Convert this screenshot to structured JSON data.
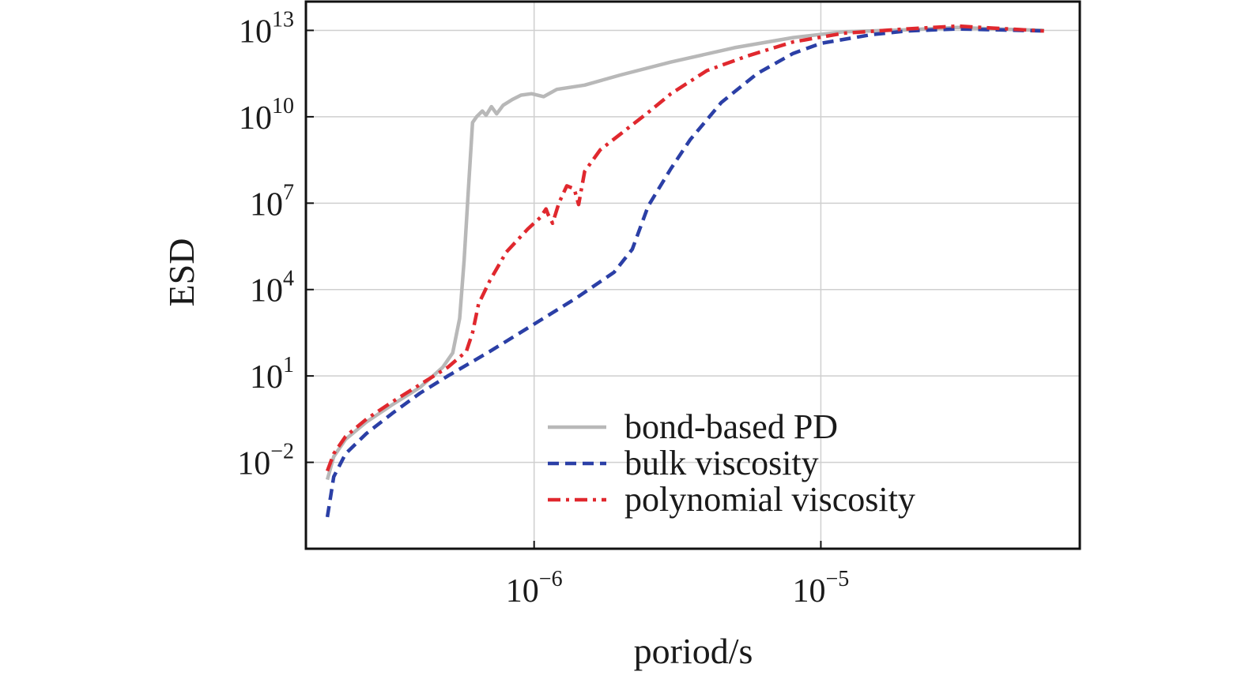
{
  "chart_data": {
    "type": "line",
    "title": "",
    "xlabel": "poriod/s",
    "ylabel": "ESD",
    "xscale": "log",
    "yscale": "log",
    "xlim": [
      1.6e-07,
      8e-05
    ],
    "ylim": [
      1e-05,
      100000000000000.0
    ],
    "grid": true,
    "legend_position": "bottom-right",
    "x_ticks": [
      {
        "value": 1e-06,
        "base": "10",
        "exp": "−6"
      },
      {
        "value": 1e-05,
        "base": "10",
        "exp": "−5"
      }
    ],
    "y_ticks": [
      {
        "value": 10000000000000.0,
        "base": "10",
        "exp": "13"
      },
      {
        "value": 10000000000.0,
        "base": "10",
        "exp": "10"
      },
      {
        "value": 10000000.0,
        "base": "10",
        "exp": "7"
      },
      {
        "value": 10000.0,
        "base": "10",
        "exp": "4"
      },
      {
        "value": 10.0,
        "base": "10",
        "exp": "1"
      },
      {
        "value": 0.01,
        "base": "10",
        "exp": "−2"
      }
    ],
    "series": [
      {
        "name": "bond-based PD",
        "color": "#b8b8b8",
        "dash": "solid",
        "points": [
          [
            1.9e-07,
            -2.6
          ],
          [
            2e-07,
            -1.8
          ],
          [
            2.2e-07,
            -1.2
          ],
          [
            2.6e-07,
            -0.6
          ],
          [
            3.2e-07,
            0.0
          ],
          [
            4e-07,
            0.6
          ],
          [
            4.8e-07,
            1.3
          ],
          [
            5.2e-07,
            1.8
          ],
          [
            5.5e-07,
            3.0
          ],
          [
            5.7e-07,
            5.0
          ],
          [
            5.9e-07,
            7.5
          ],
          [
            6.1e-07,
            9.8
          ],
          [
            6.3e-07,
            10.0
          ],
          [
            6.6e-07,
            10.2
          ],
          [
            6.8e-07,
            10.05
          ],
          [
            7.1e-07,
            10.35
          ],
          [
            7.4e-07,
            10.1
          ],
          [
            7.8e-07,
            10.4
          ],
          [
            8.4e-07,
            10.6
          ],
          [
            9e-07,
            10.75
          ],
          [
            9.8e-07,
            10.8
          ],
          [
            1.08e-06,
            10.7
          ],
          [
            1.2e-06,
            10.95
          ],
          [
            1.5e-06,
            11.1
          ],
          [
            2e-06,
            11.45
          ],
          [
            3e-06,
            11.9
          ],
          [
            5e-06,
            12.4
          ],
          [
            8e-06,
            12.75
          ],
          [
            1.2e-05,
            12.95
          ],
          [
            2e-05,
            13.02
          ],
          [
            3e-05,
            13.1
          ],
          [
            4e-05,
            13.05
          ],
          [
            6e-05,
            13.0
          ]
        ]
      },
      {
        "name": "bulk viscosity",
        "color": "#2b3fa6",
        "dash": "dashed",
        "points": [
          [
            1.9e-07,
            -3.9
          ],
          [
            1.95e-07,
            -3.2
          ],
          [
            2e-07,
            -2.5
          ],
          [
            2.2e-07,
            -1.7
          ],
          [
            2.6e-07,
            -1.0
          ],
          [
            3.2e-07,
            -0.3
          ],
          [
            4e-07,
            0.4
          ],
          [
            5e-07,
            1.0
          ],
          [
            7e-07,
            1.85
          ],
          [
            1e-06,
            2.8
          ],
          [
            1.4e-06,
            3.7
          ],
          [
            1.9e-06,
            4.6
          ],
          [
            2.2e-06,
            5.4
          ],
          [
            2.5e-06,
            6.9
          ],
          [
            3e-06,
            8.2
          ],
          [
            3.5e-06,
            9.2
          ],
          [
            4.5e-06,
            10.5
          ],
          [
            6e-06,
            11.5
          ],
          [
            8e-06,
            12.2
          ],
          [
            1e-05,
            12.55
          ],
          [
            1.5e-05,
            12.85
          ],
          [
            2e-05,
            12.98
          ],
          [
            3e-05,
            13.05
          ],
          [
            4e-05,
            13.02
          ],
          [
            6e-05,
            12.98
          ]
        ]
      },
      {
        "name": "polynomial viscosity",
        "color": "#e0282e",
        "dash": "dashdot",
        "points": [
          [
            1.9e-07,
            -2.3
          ],
          [
            2e-07,
            -1.7
          ],
          [
            2.2e-07,
            -1.1
          ],
          [
            2.6e-07,
            -0.5
          ],
          [
            3.2e-07,
            0.1
          ],
          [
            4e-07,
            0.7
          ],
          [
            5e-07,
            1.3
          ],
          [
            5.8e-07,
            1.85
          ],
          [
            6.1e-07,
            2.5
          ],
          [
            6.4e-07,
            3.5
          ],
          [
            7e-07,
            4.3
          ],
          [
            8e-07,
            5.3
          ],
          [
            9.5e-07,
            6.1
          ],
          [
            1.05e-06,
            6.5
          ],
          [
            1.1e-06,
            6.8
          ],
          [
            1.12e-06,
            6.6
          ],
          [
            1.16e-06,
            6.3
          ],
          [
            1.22e-06,
            7.0
          ],
          [
            1.3e-06,
            7.6
          ],
          [
            1.38e-06,
            7.5
          ],
          [
            1.43e-06,
            6.95
          ],
          [
            1.5e-06,
            8.1
          ],
          [
            1.7e-06,
            8.85
          ],
          [
            2e-06,
            9.4
          ],
          [
            2.5e-06,
            10.15
          ],
          [
            3e-06,
            10.8
          ],
          [
            4e-06,
            11.6
          ],
          [
            5.5e-06,
            12.1
          ],
          [
            8e-06,
            12.6
          ],
          [
            1.2e-05,
            12.9
          ],
          [
            2e-05,
            13.05
          ],
          [
            3e-05,
            13.15
          ],
          [
            4e-05,
            13.08
          ],
          [
            6e-05,
            12.98
          ]
        ]
      }
    ]
  }
}
